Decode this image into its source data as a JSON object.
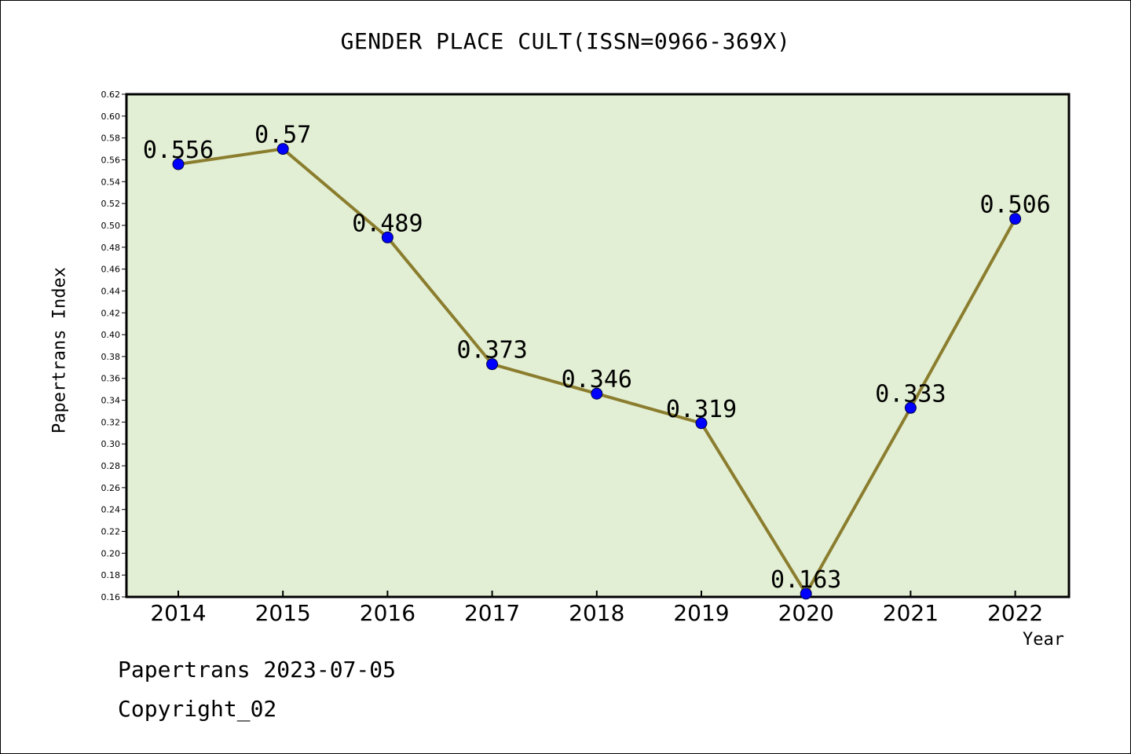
{
  "chart_data": {
    "type": "line",
    "title": "GENDER PLACE CULT(ISSN=0966-369X)",
    "xlabel": "Year",
    "ylabel": "Papertrans Index",
    "categories": [
      "2014",
      "2015",
      "2016",
      "2017",
      "2018",
      "2019",
      "2020",
      "2021",
      "2022"
    ],
    "series": [
      {
        "values": [
          0.556,
          0.57,
          0.489,
          0.373,
          0.346,
          0.319,
          0.163,
          0.333,
          0.506
        ],
        "labels": [
          "0.556",
          "0.57",
          "0.489",
          "0.373",
          "0.346",
          "0.319",
          "0.163",
          "0.333",
          "0.506"
        ],
        "line_color": "#8b7d2e",
        "marker_color": "#0000ff"
      }
    ],
    "ylim": [
      0.16,
      0.62
    ],
    "yticks": [
      "0.16",
      "0.18",
      "0.20",
      "0.22",
      "0.24",
      "0.26",
      "0.28",
      "0.30",
      "0.32",
      "0.34",
      "0.36",
      "0.38",
      "0.40",
      "0.42",
      "0.44",
      "0.46",
      "0.48",
      "0.50",
      "0.52",
      "0.54",
      "0.56",
      "0.58",
      "0.60",
      "0.62"
    ],
    "grid": false,
    "legend": "none",
    "plot_background": "#e2efd4"
  },
  "footer": {
    "line1": "Papertrans 2023-07-05",
    "line2": "Copyright_02"
  }
}
